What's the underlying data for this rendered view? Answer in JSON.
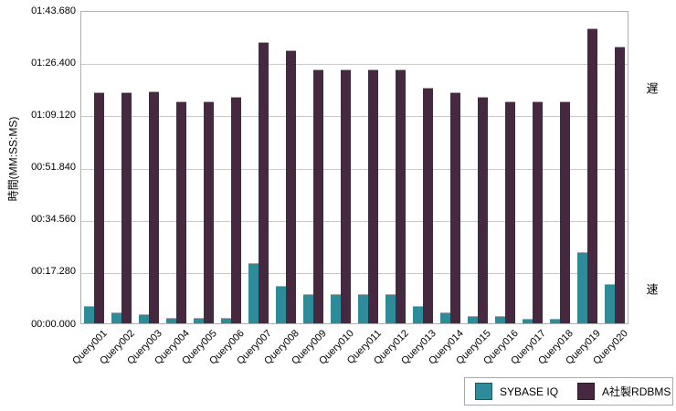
{
  "chart_data": {
    "type": "bar",
    "title": "",
    "ylabel": "時間(MM:SS:MS)",
    "xlabel": "",
    "grid": true,
    "legend_position": "bottom-right",
    "y_max_seconds": 103.68,
    "y_ticks": [
      {
        "label": "00:00.000",
        "seconds": 0
      },
      {
        "label": "00:17.280",
        "seconds": 17.28
      },
      {
        "label": "00:34.560",
        "seconds": 34.56
      },
      {
        "label": "00:51.840",
        "seconds": 51.84
      },
      {
        "label": "01:09.120",
        "seconds": 69.12
      },
      {
        "label": "01:26.400",
        "seconds": 86.4
      },
      {
        "label": "01:43.680",
        "seconds": 103.68
      }
    ],
    "categories": [
      "Query001",
      "Query002",
      "Query003",
      "Query004",
      "Query005",
      "Query006",
      "Query007",
      "Query008",
      "Query009",
      "Query010",
      "Query011",
      "Query012",
      "Query013",
      "Query014",
      "Query015",
      "Query016",
      "Query017",
      "Query018",
      "Query019",
      "Query020"
    ],
    "series": [
      {
        "name": "SYBASE IQ",
        "color": "#2E8B99",
        "values": [
          5.7,
          3.7,
          3.0,
          1.9,
          1.9,
          1.9,
          19.9,
          12.3,
          9.8,
          9.8,
          9.8,
          9.8,
          5.8,
          3.7,
          2.4,
          2.4,
          1.5,
          1.5,
          23.6,
          13.1
        ]
      },
      {
        "name": "A社製RDBMS",
        "color": "#462840",
        "values": [
          76.6,
          76.6,
          76.7,
          73.6,
          73.6,
          75.1,
          93.1,
          90.3,
          84.0,
          84.0,
          84.0,
          84.0,
          77.9,
          76.5,
          74.9,
          73.4,
          73.4,
          73.4,
          97.6,
          91.5
        ]
      }
    ],
    "annotations": [
      {
        "text": "遅",
        "meaning": "slow",
        "position": "top-right"
      },
      {
        "text": "速",
        "meaning": "fast",
        "position": "bottom-right"
      }
    ]
  }
}
